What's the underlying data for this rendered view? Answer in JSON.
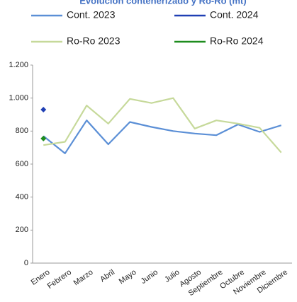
{
  "chart_data": {
    "type": "line",
    "title": "Evolución contenerizado y Ro-Ro (mt)",
    "categories": [
      "Enero",
      "Febrero",
      "Marzo",
      "Abril",
      "Mayo",
      "Junio",
      "Julio",
      "Agosto",
      "Septiembre",
      "Octubre",
      "Noviembre",
      "Diciembre"
    ],
    "series": [
      {
        "name": "Cont. 2023",
        "color": "#5b8fd6",
        "values": [
          770,
          665,
          865,
          720,
          855,
          825,
          800,
          785,
          775,
          840,
          795,
          835
        ]
      },
      {
        "name": "Cont. 2024",
        "color": "#1f3fb4",
        "values": [
          930,
          null,
          null,
          null,
          null,
          null,
          null,
          null,
          null,
          null,
          null,
          null
        ]
      },
      {
        "name": "Ro-Ro 2023",
        "color": "#c6d99a",
        "values": [
          715,
          735,
          955,
          845,
          995,
          970,
          1000,
          815,
          865,
          845,
          820,
          670
        ]
      },
      {
        "name": "Ro-Ro 2024",
        "color": "#1e8c1e",
        "values": [
          755,
          null,
          null,
          null,
          null,
          null,
          null,
          null,
          null,
          null,
          null,
          null
        ]
      }
    ],
    "ylim": [
      0,
      1200
    ],
    "yticks": [
      0,
      200,
      400,
      600,
      800,
      {
        "value": 1000,
        "label": "1.000"
      },
      {
        "value": 1200,
        "label": "1.200"
      }
    ],
    "grid": false
  }
}
